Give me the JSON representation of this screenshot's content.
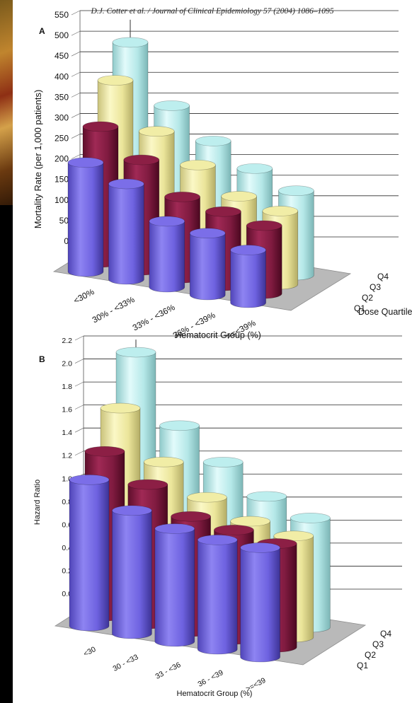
{
  "header": "D.J. Cotter et al. / Journal of Clinical Epidemiology 57 (2004) 1086–1095",
  "colors": {
    "Q1": "#7b6ee8",
    "Q2": "#8c1f45",
    "Q3": "#f1eda6",
    "Q4": "#bdeeee"
  },
  "chart_data": [
    {
      "type": "bar",
      "panel_label": "A",
      "categories": [
        "<30%",
        "30% - <33%",
        "33% - <36%",
        "36% - <39%",
        ">=<39%"
      ],
      "series": [
        {
          "name": "Q1",
          "values": [
            265,
            232,
            160,
            150,
            128
          ]
        },
        {
          "name": "Q2",
          "values": [
            330,
            268,
            197,
            180,
            165
          ]
        },
        {
          "name": "Q3",
          "values": [
            420,
            315,
            252,
            195,
            178
          ]
        },
        {
          "name": "Q4",
          "values": [
            490,
            355,
            288,
            240,
            205
          ]
        }
      ],
      "error_bar_top": 545,
      "ylabel": "Mortality Rate (per 1,000 patients)",
      "xlabel": "Hematocrit Group (%)",
      "depth_axis_label": "Dose Quartile",
      "ylim": [
        0,
        550
      ],
      "yticks": [
        "0",
        "50",
        "100",
        "150",
        "200",
        "250",
        "300",
        "350",
        "400",
        "450",
        "500",
        "550"
      ],
      "grid": true
    },
    {
      "type": "bar",
      "panel_label": "B",
      "categories": [
        "<30",
        "30 - <33",
        "33 - <36",
        "36 - <39",
        ">=<39"
      ],
      "series": [
        {
          "name": "Q1",
          "values": [
            1.27,
            1.07,
            0.98,
            0.95,
            0.95
          ]
        },
        {
          "name": "Q2",
          "values": [
            1.43,
            1.21,
            1.0,
            0.95,
            0.9
          ]
        },
        {
          "name": "Q3",
          "values": [
            1.72,
            1.32,
            1.08,
            0.94,
            0.88
          ]
        },
        {
          "name": "Q4",
          "values": [
            2.12,
            1.55,
            1.3,
            1.07,
            0.95
          ]
        }
      ],
      "error_bar_top": 2.23,
      "ylabel": "Hazard Ratio",
      "xlabel": "Hematocrit Group (%)",
      "ylim": [
        0,
        2.2
      ],
      "yticks": [
        "0.0",
        "0.2",
        "0.4",
        "0.6",
        "0.8",
        "1.0",
        "1.2",
        "1.4",
        "1.6",
        "1.8",
        "2.0",
        "2.2"
      ],
      "grid": true
    }
  ]
}
